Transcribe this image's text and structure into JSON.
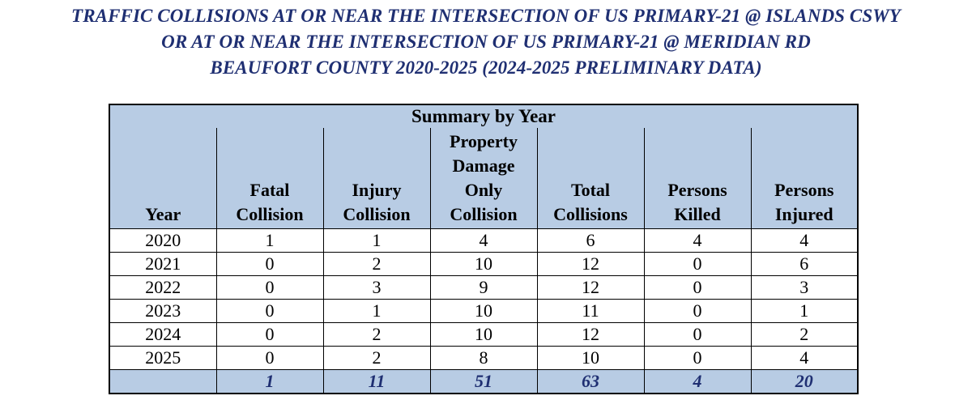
{
  "title": {
    "lines": [
      "TRAFFIC COLLISIONS AT OR NEAR THE INTERSECTION OF US PRIMARY-21 @ ISLANDS CSWY",
      "OR AT OR NEAR THE INTERSECTION OF US PRIMARY-21 @ MERIDIAN RD",
      "BEAUFORT COUNTY 2020-2025 (2024-2025 PRELIMINARY DATA)"
    ]
  },
  "table": {
    "section_title": "Summary by Year",
    "headers": [
      "Year",
      "Fatal Collision",
      "Injury Collision",
      "Property Damage Only Collision",
      "Total Collisions",
      "Persons Killed",
      "Persons Injured"
    ],
    "rows": [
      [
        "2020",
        "1",
        "1",
        "4",
        "6",
        "4",
        "4"
      ],
      [
        "2021",
        "0",
        "2",
        "10",
        "12",
        "0",
        "6"
      ],
      [
        "2022",
        "0",
        "3",
        "9",
        "12",
        "0",
        "3"
      ],
      [
        "2023",
        "0",
        "1",
        "10",
        "11",
        "0",
        "1"
      ],
      [
        "2024",
        "0",
        "2",
        "10",
        "12",
        "0",
        "2"
      ],
      [
        "2025",
        "0",
        "2",
        "8",
        "10",
        "0",
        "4"
      ]
    ],
    "totals": [
      "",
      "1",
      "11",
      "51",
      "63",
      "4",
      "20"
    ]
  },
  "colors": {
    "title_text": "#1f2f72",
    "header_fill": "#b8cce4",
    "totals_text": "#1f2f72"
  }
}
